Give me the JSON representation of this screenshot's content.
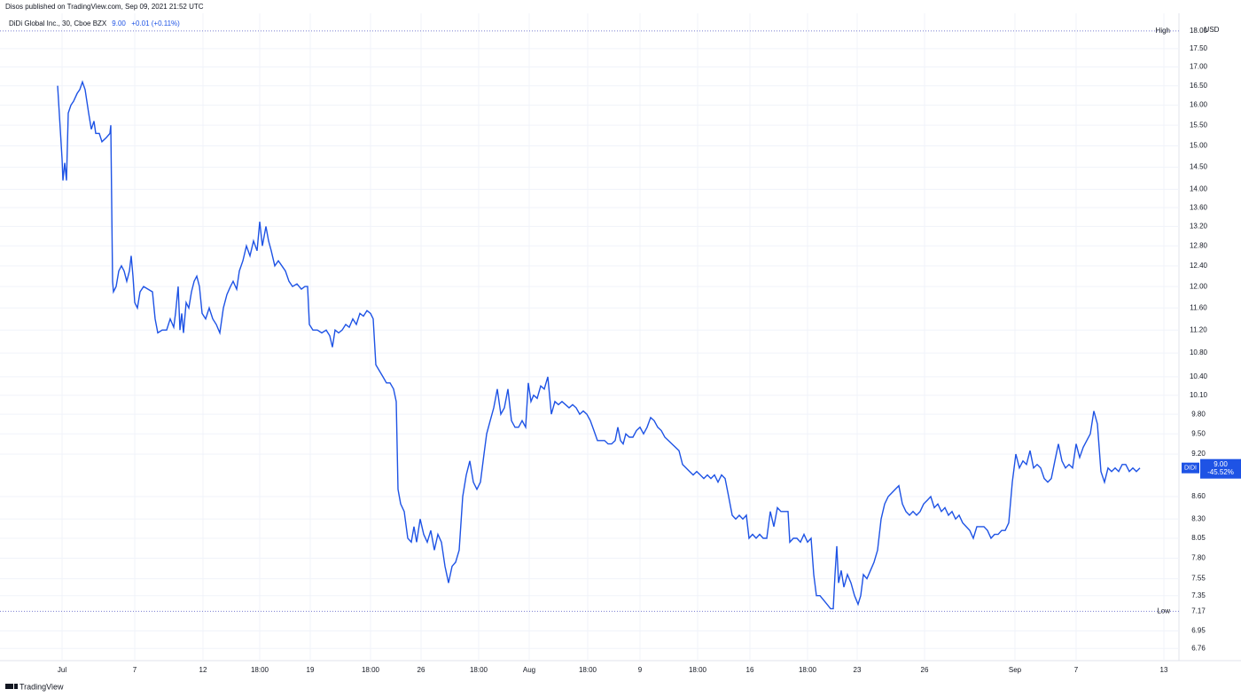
{
  "header": "Disos published on TradingView.com, Sep 09, 2021 21:52 UTC",
  "footer": "TradingView",
  "chart_data": {
    "type": "line",
    "log_scale": true,
    "grid": true,
    "currency": "USD",
    "legend": {
      "last": "9.00",
      "change": "+0.01 (+0.11%)"
    },
    "high": {
      "label": "High",
      "value": 18,
      "value_label": "18.00"
    },
    "low": {
      "label": "Low",
      "value": 7.17,
      "value_label": "7.17"
    },
    "price_label": {
      "name": "DIDI",
      "value": 9,
      "value_label": "9.00",
      "change": "-45.52%"
    },
    "xlim": [
      0,
      133
    ],
    "ylim": [
      6.63,
      18.38
    ],
    "xticks": [
      {
        "value": 7,
        "label": "Jul"
      },
      {
        "value": 15.2,
        "label": "7"
      },
      {
        "value": 22.9,
        "label": "12"
      },
      {
        "value": 29.3,
        "label": "18:00"
      },
      {
        "value": 35,
        "label": "19"
      },
      {
        "value": 41.8,
        "label": "18:00"
      },
      {
        "value": 47.5,
        "label": "26"
      },
      {
        "value": 54,
        "label": "18:00"
      },
      {
        "value": 59.7,
        "label": "Aug"
      },
      {
        "value": 66.3,
        "label": "18:00"
      },
      {
        "value": 72.2,
        "label": "9"
      },
      {
        "value": 78.7,
        "label": "18:00"
      },
      {
        "value": 84.6,
        "label": "16"
      },
      {
        "value": 91.1,
        "label": "18:00"
      },
      {
        "value": 96.7,
        "label": "23"
      },
      {
        "value": 104.3,
        "label": "26"
      },
      {
        "value": 114.5,
        "label": "Sep"
      },
      {
        "value": 121.4,
        "label": "7"
      },
      {
        "value": 131.3,
        "label": "13"
      }
    ],
    "yticks": [
      {
        "value": 17.5,
        "label": "17.50"
      },
      {
        "value": 17,
        "label": "17.00"
      },
      {
        "value": 16.5,
        "label": "16.50"
      },
      {
        "value": 16,
        "label": "16.00"
      },
      {
        "value": 15.5,
        "label": "15.50"
      },
      {
        "value": 15,
        "label": "15.00"
      },
      {
        "value": 14.5,
        "label": "14.50"
      },
      {
        "value": 14,
        "label": "14.00"
      },
      {
        "value": 13.6,
        "label": "13.60"
      },
      {
        "value": 13.2,
        "label": "13.20"
      },
      {
        "value": 12.8,
        "label": "12.80"
      },
      {
        "value": 12.4,
        "label": "12.40"
      },
      {
        "value": 12,
        "label": "12.00"
      },
      {
        "value": 11.6,
        "label": "11.60"
      },
      {
        "value": 11.2,
        "label": "11.20"
      },
      {
        "value": 10.8,
        "label": "10.80"
      },
      {
        "value": 10.4,
        "label": "10.40"
      },
      {
        "value": 10.1,
        "label": "10.10"
      },
      {
        "value": 9.8,
        "label": "9.80"
      },
      {
        "value": 9.5,
        "label": "9.50"
      },
      {
        "value": 9.2,
        "label": "9.20"
      },
      {
        "value": 8.6,
        "label": "8.60"
      },
      {
        "value": 8.3,
        "label": "8.30"
      },
      {
        "value": 8.05,
        "label": "8.05"
      },
      {
        "value": 7.8,
        "label": "7.80"
      },
      {
        "value": 7.55,
        "label": "7.55"
      },
      {
        "value": 7.35,
        "label": "7.35"
      },
      {
        "value": 6.95,
        "label": "6.95"
      },
      {
        "value": 6.76,
        "label": "6.76"
      }
    ],
    "x": [
      6.5,
      7,
      7.1,
      7.3,
      7.5,
      7.7,
      8,
      8.3,
      8.7,
      9,
      9.3,
      9.6,
      10,
      10.3,
      10.6,
      10.8,
      11.2,
      11.5,
      12,
      12.4,
      12.5,
      12.7,
      12.8,
      13.1,
      13.4,
      13.7,
      14,
      14.3,
      14.6,
      14.8,
      15,
      15.2,
      15.5,
      15.8,
      16.2,
      16.7,
      17.2,
      17.5,
      17.8,
      18.3,
      18.8,
      19.2,
      19.6,
      19.8,
      20.1,
      20.3,
      20.5,
      20.7,
      21,
      21.3,
      21.6,
      21.9,
      22.2,
      22.5,
      22.8,
      23.2,
      23.6,
      24,
      24.4,
      24.8,
      25.2,
      25.6,
      26,
      26.3,
      26.7,
      27,
      27.4,
      27.8,
      28.2,
      28.6,
      29,
      29.3,
      29.6,
      30,
      30.3,
      30.6,
      31,
      31.4,
      31.8,
      32.2,
      32.6,
      33,
      33.5,
      34,
      34.4,
      34.7,
      34.9,
      35.3,
      35.8,
      36.3,
      36.8,
      37.2,
      37.5,
      37.8,
      38.2,
      38.6,
      39,
      39.4,
      39.8,
      40.2,
      40.6,
      41,
      41.4,
      41.8,
      42.1,
      42.4,
      42.8,
      43.2,
      43.6,
      44,
      44.4,
      44.7,
      44.9,
      45.2,
      45.6,
      46,
      46.4,
      46.7,
      47,
      47.4,
      47.8,
      48.2,
      48.6,
      49,
      49.4,
      49.8,
      50.2,
      50.6,
      51,
      51.4,
      51.8,
      52.2,
      52.6,
      53,
      53.4,
      53.8,
      54.2,
      54.6,
      54.9,
      55.3,
      55.7,
      56.1,
      56.5,
      56.9,
      57.3,
      57.7,
      58.1,
      58.5,
      58.9,
      59.3,
      59.6,
      59.9,
      60.2,
      60.6,
      61,
      61.4,
      61.8,
      62.2,
      62.6,
      63,
      63.4,
      63.8,
      64.2,
      64.6,
      65,
      65.4,
      65.8,
      66.2,
      66.6,
      67,
      67.4,
      67.8,
      68.2,
      68.6,
      69,
      69.4,
      69.7,
      70,
      70.3,
      70.6,
      71,
      71.4,
      71.8,
      72.2,
      72.6,
      73,
      73.4,
      73.8,
      74.2,
      74.6,
      75,
      75.4,
      75.8,
      76.2,
      76.6,
      77,
      77.4,
      77.8,
      78.2,
      78.6,
      79,
      79.4,
      79.8,
      80.2,
      80.6,
      81,
      81.4,
      81.8,
      82.2,
      82.6,
      83,
      83.4,
      83.8,
      84.2,
      84.5,
      84.9,
      85.3,
      85.7,
      86.1,
      86.5,
      86.9,
      87.3,
      87.7,
      88.1,
      88.5,
      88.9,
      89.1,
      89.5,
      89.9,
      90.3,
      90.7,
      91.1,
      91.5,
      91.8,
      92.1,
      92.5,
      92.9,
      93.3,
      93.7,
      94,
      94.2,
      94.4,
      94.6,
      94.9,
      95.2,
      95.6,
      96,
      96.4,
      96.8,
      97.1,
      97.4,
      97.8,
      98.2,
      98.6,
      99,
      99.4,
      99.8,
      100.2,
      100.6,
      101,
      101.4,
      101.8,
      102.2,
      102.6,
      103,
      103.4,
      103.8,
      104.2,
      104.6,
      105,
      105.4,
      105.8,
      106.2,
      106.6,
      107,
      107.4,
      107.8,
      108.2,
      108.6,
      109,
      109.4,
      109.8,
      110.2,
      110.6,
      111,
      111.4,
      111.8,
      112.2,
      112.6,
      113,
      113.4,
      113.8,
      114.2,
      114.6,
      115,
      115.4,
      115.8,
      116.2,
      116.6,
      117,
      117.4,
      117.8,
      118.2,
      118.6,
      119,
      119.4,
      119.8,
      120.2,
      120.6,
      121,
      121.4,
      121.8,
      122.2,
      122.6,
      123,
      123.4,
      123.8,
      124.2,
      124.6,
      125,
      125.4,
      125.8,
      126.2,
      126.6,
      127,
      127.4,
      127.8,
      128.2,
      128.6
    ],
    "series": [
      {
        "name": "DiDi Global Inc., 30, Cboe BZX",
        "color": "#1e53e5",
        "values": [
          16.5,
          14.7,
          14.2,
          14.6,
          14.2,
          15.8,
          16,
          16.1,
          16.3,
          16.4,
          16.6,
          16.4,
          15.8,
          15.4,
          15.6,
          15.3,
          15.3,
          15.1,
          15.2,
          15.3,
          15.5,
          12.1,
          11.9,
          12,
          12.3,
          12.4,
          12.3,
          12.1,
          12.3,
          12.6,
          12.2,
          11.7,
          11.6,
          11.9,
          12,
          11.95,
          11.9,
          11.4,
          11.15,
          11.2,
          11.2,
          11.4,
          11.25,
          11.5,
          12,
          11.2,
          11.5,
          11.15,
          11.7,
          11.6,
          11.9,
          12.1,
          12.2,
          12,
          11.5,
          11.4,
          11.6,
          11.4,
          11.3,
          11.15,
          11.6,
          11.85,
          12,
          12.1,
          11.95,
          12.3,
          12.5,
          12.8,
          12.6,
          12.9,
          12.7,
          13.3,
          12.8,
          13.2,
          12.9,
          12.7,
          12.4,
          12.5,
          12.4,
          12.3,
          12.1,
          12,
          12.05,
          11.95,
          12,
          12,
          11.3,
          11.2,
          11.2,
          11.15,
          11.2,
          11.1,
          10.9,
          11.2,
          11.15,
          11.2,
          11.3,
          11.25,
          11.4,
          11.3,
          11.5,
          11.45,
          11.55,
          11.5,
          11.4,
          10.6,
          10.5,
          10.4,
          10.3,
          10.3,
          10.2,
          10,
          8.7,
          8.5,
          8.4,
          8.05,
          8,
          8.2,
          8,
          8.3,
          8.1,
          8,
          8.15,
          7.9,
          8.1,
          8,
          7.7,
          7.5,
          7.7,
          7.75,
          7.9,
          8.6,
          8.9,
          9.1,
          8.8,
          8.7,
          8.8,
          9.2,
          9.5,
          9.7,
          9.9,
          10.2,
          9.8,
          9.9,
          10.2,
          9.7,
          9.6,
          9.6,
          9.7,
          9.6,
          10.3,
          10,
          10.1,
          10.05,
          10.25,
          10.2,
          10.4,
          9.8,
          10,
          9.95,
          10,
          9.95,
          9.9,
          9.95,
          9.9,
          9.8,
          9.85,
          9.8,
          9.7,
          9.55,
          9.4,
          9.4,
          9.4,
          9.35,
          9.35,
          9.4,
          9.6,
          9.4,
          9.35,
          9.5,
          9.45,
          9.45,
          9.55,
          9.6,
          9.5,
          9.6,
          9.75,
          9.7,
          9.6,
          9.55,
          9.45,
          9.4,
          9.35,
          9.3,
          9.25,
          9.05,
          9,
          8.95,
          8.9,
          8.95,
          8.9,
          8.85,
          8.9,
          8.85,
          8.9,
          8.8,
          8.9,
          8.85,
          8.6,
          8.35,
          8.3,
          8.35,
          8.3,
          8.35,
          8.05,
          8.1,
          8.05,
          8.1,
          8.05,
          8.05,
          8.4,
          8.2,
          8.45,
          8.4,
          8.4,
          8.4,
          8,
          8.05,
          8.05,
          8,
          8.1,
          8,
          8.05,
          7.6,
          7.35,
          7.35,
          7.3,
          7.25,
          7.2,
          7.2,
          7.6,
          7.95,
          7.5,
          7.65,
          7.45,
          7.6,
          7.5,
          7.35,
          7.25,
          7.35,
          7.6,
          7.55,
          7.65,
          7.75,
          7.9,
          8.3,
          8.5,
          8.6,
          8.65,
          8.7,
          8.75,
          8.5,
          8.4,
          8.35,
          8.4,
          8.35,
          8.4,
          8.5,
          8.55,
          8.6,
          8.45,
          8.5,
          8.4,
          8.45,
          8.35,
          8.4,
          8.3,
          8.35,
          8.25,
          8.2,
          8.15,
          8.05,
          8.2,
          8.2,
          8.2,
          8.15,
          8.05,
          8.1,
          8.1,
          8.15,
          8.15,
          8.25,
          8.8,
          9.2,
          9,
          9.1,
          9.05,
          9.25,
          9,
          9.05,
          9,
          8.85,
          8.8,
          8.85,
          9.1,
          9.35,
          9.1,
          9,
          9.05,
          9,
          9.35,
          9.15,
          9.3,
          9.4,
          9.5,
          9.85,
          9.65,
          8.95,
          8.8,
          9,
          8.95,
          9,
          8.95,
          9.05,
          9.05,
          8.95,
          9,
          8.95,
          9
        ]
      }
    ]
  }
}
